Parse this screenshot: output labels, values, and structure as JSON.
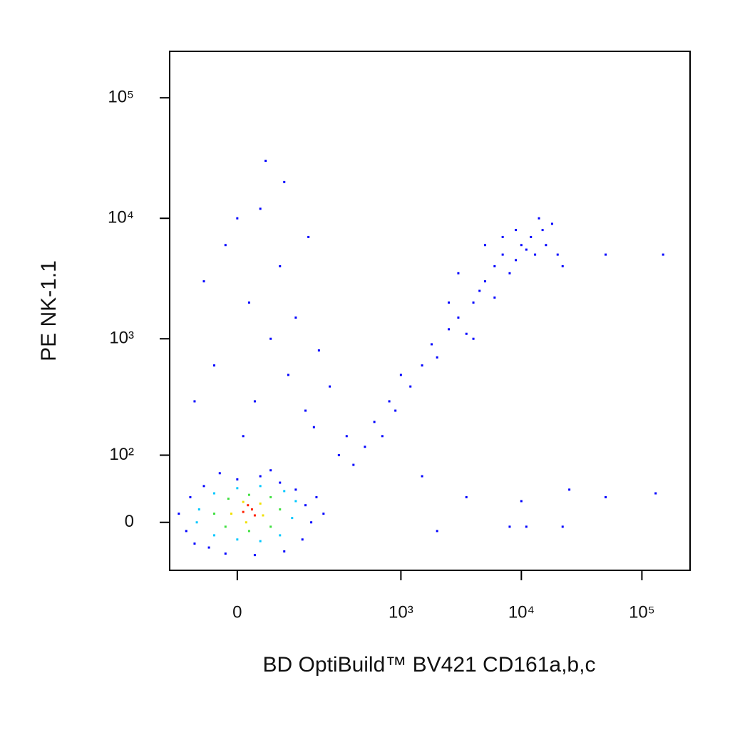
{
  "chart_data": {
    "type": "scatter",
    "x_label": "BD OptiBuild™ BV421 CD161a,b,c",
    "y_label": "PE NK-1.1",
    "xscale": "biexponential",
    "yscale": "biexponential",
    "xlim": [
      -148,
      251000
    ],
    "ylim": [
      -63,
      243000
    ],
    "xticks": [
      0,
      {
        "value": 1000,
        "label": "10³"
      },
      {
        "value": 10000,
        "label": "10⁴"
      },
      {
        "value": 100000,
        "label": "10⁵"
      }
    ],
    "yticks": [
      0,
      {
        "value": 100,
        "label": "10²"
      },
      {
        "value": 1000,
        "label": "10³"
      },
      {
        "value": 10000,
        "label": "10⁴"
      },
      {
        "value": 100000,
        "label": "10⁵"
      }
    ],
    "series": [
      {
        "color": "#0000ff",
        "x": [
          -120,
          -90,
          -100,
          -60,
          -50,
          0,
          40,
          80,
          120,
          150,
          170,
          140,
          90,
          30,
          -20,
          -80,
          190,
          220,
          60,
          -30,
          10,
          30,
          -40,
          60,
          20,
          80,
          -20,
          40,
          100,
          150,
          200,
          -60,
          120,
          50,
          90,
          160,
          0,
          -80,
          180,
          250,
          300,
          400,
          350,
          500,
          600,
          700,
          800,
          900,
          1000,
          1200,
          1500,
          1800,
          2000,
          2500,
          3000,
          3500,
          4000,
          4500,
          5000,
          6000,
          6000,
          7000,
          8000,
          9000,
          10000,
          11000,
          12000,
          13000,
          15000,
          16000,
          18000,
          20000,
          3000,
          2500,
          7000,
          9000,
          14000,
          22000,
          5000,
          4000,
          50000,
          150000,
          3500,
          10000,
          25000,
          50000,
          130000,
          8000,
          11000,
          22000,
          2000,
          1500
        ],
        "y": [
          10,
          30,
          -10,
          45,
          -30,
          55,
          60,
          50,
          40,
          20,
          0,
          -20,
          -35,
          -40,
          -38,
          -25,
          30,
          10,
          70,
          65,
          150,
          300,
          600,
          1000,
          2000,
          4000,
          6000,
          12000,
          500,
          250,
          800,
          3000,
          1500,
          30000,
          20000,
          7000,
          10000,
          300,
          180,
          400,
          100,
          80,
          150,
          120,
          200,
          150,
          300,
          250,
          500,
          400,
          600,
          900,
          700,
          1200,
          1500,
          1100,
          2000,
          2500,
          3000,
          2200,
          4000,
          5000,
          3500,
          4500,
          6000,
          5500,
          7000,
          5000,
          8000,
          6000,
          9000,
          5000,
          3500,
          2000,
          7000,
          8000,
          10000,
          4000,
          6000,
          1000,
          5000,
          5000,
          30,
          25,
          40,
          30,
          35,
          -5,
          -5,
          -5,
          -10,
          60
        ]
      },
      {
        "color": "#00c8ff",
        "x": [
          -70,
          -40,
          0,
          40,
          80,
          110,
          120,
          90,
          40,
          0,
          -40,
          -75
        ],
        "y": [
          15,
          -15,
          -20,
          -22,
          -15,
          5,
          25,
          38,
          45,
          42,
          35,
          0
        ]
      },
      {
        "color": "#3fe03f",
        "x": [
          -40,
          -20,
          20,
          60,
          80,
          60,
          20,
          -15
        ],
        "y": [
          10,
          -5,
          -10,
          -5,
          15,
          30,
          33,
          28
        ]
      },
      {
        "color": "#f0e000",
        "x": [
          -10,
          15,
          45,
          40,
          10
        ],
        "y": [
          10,
          0,
          8,
          22,
          24
        ]
      },
      {
        "color": "#ff2000",
        "x": [
          10,
          25,
          30,
          18
        ],
        "y": [
          12,
          15,
          8,
          20
        ]
      }
    ]
  }
}
